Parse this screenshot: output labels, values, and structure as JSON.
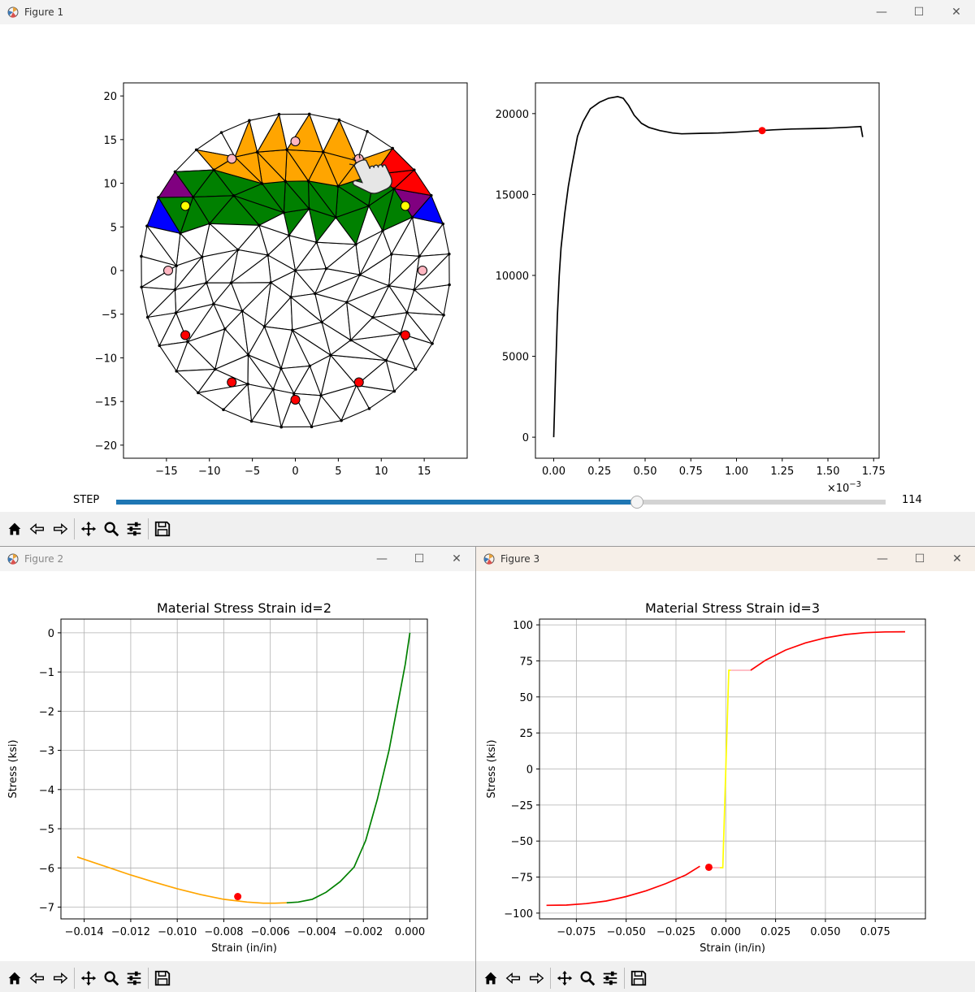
{
  "figure1": {
    "title": "Figure 1",
    "mesh_plot": {
      "x_ticks": [
        "−15",
        "−10",
        "−5",
        "0",
        "5",
        "10",
        "15"
      ],
      "y_ticks": [
        "20",
        "15",
        "10",
        "5",
        "0",
        "−5",
        "−10",
        "−15",
        "−20"
      ],
      "xlim": [
        -20,
        20
      ],
      "ylim": [
        -21.5,
        21.5
      ]
    },
    "step_slider": {
      "label": "STEP",
      "value": "114",
      "fraction": 0.676
    },
    "chart_data": {
      "type": "line",
      "title": "",
      "x_ticks": [
        "0.00",
        "0.25",
        "0.50",
        "0.75",
        "1.00",
        "1.25",
        "1.50",
        "1.75"
      ],
      "y_ticks": [
        "20000",
        "15000",
        "10000",
        "5000",
        "0"
      ],
      "x_multiplier": "×10",
      "x_multiplier_exp": "−3",
      "xlim": [
        -0.0001,
        0.00178
      ],
      "ylim": [
        -1300,
        21900
      ],
      "series": [
        {
          "color": "#000000",
          "x": [
            0.0,
            1e-05,
            2e-05,
            3e-05,
            4e-05,
            6e-05,
            8e-05,
            0.0001,
            0.00013,
            0.00016,
            0.0002,
            0.00025,
            0.0003,
            0.00035,
            0.00038,
            0.00041,
            0.00044,
            0.00048,
            0.00052,
            0.00058,
            0.00065,
            0.0007,
            0.0008,
            0.0009,
            0.001,
            0.00114,
            0.0012,
            0.0013,
            0.0014,
            0.0015,
            0.0016,
            0.00168,
            0.00169
          ],
          "y": [
            0,
            4000,
            7500,
            10000,
            11700,
            13800,
            15500,
            16800,
            18600,
            19500,
            20300,
            20700,
            20950,
            21050,
            20950,
            20500,
            19900,
            19400,
            19150,
            18950,
            18800,
            18750,
            18780,
            18800,
            18850,
            18950,
            19000,
            19050,
            19070,
            19100,
            19150,
            19200,
            18550
          ]
        }
      ],
      "marker": {
        "x": 0.00114,
        "y": 18950,
        "color": "#ff0000"
      }
    },
    "toolbar": [
      "home-icon",
      "back-icon",
      "forward-icon",
      "pan-icon",
      "zoom-icon",
      "configure-icon",
      "save-icon"
    ]
  },
  "figure2": {
    "title": "Figure 2",
    "chart_data": {
      "type": "line",
      "title": "Material Stress Strain id=2",
      "xlabel": "Strain (in/in)",
      "ylabel": "Stress (ksi)",
      "x_ticks": [
        "−0.014",
        "−0.012",
        "−0.010",
        "−0.008",
        "−0.006",
        "−0.004",
        "−0.002",
        "0.000"
      ],
      "x_tick_values": [
        -0.014,
        -0.012,
        -0.01,
        -0.008,
        -0.006,
        -0.004,
        -0.002,
        0.0
      ],
      "y_ticks": [
        "0",
        "−1",
        "−2",
        "−3",
        "−4",
        "−5",
        "−6",
        "−7"
      ],
      "y_tick_values": [
        0,
        -1,
        -2,
        -3,
        -4,
        -5,
        -6,
        -7
      ],
      "xlim": [
        -0.015,
        0.00075
      ],
      "ylim": [
        -7.3,
        0.35
      ],
      "grid": true,
      "series": [
        {
          "color": "#ffa500",
          "x": [
            -0.0143,
            -0.013,
            -0.012,
            -0.011,
            -0.01,
            -0.009,
            -0.008,
            -0.007,
            -0.0063,
            -0.0058,
            -0.0053
          ],
          "y": [
            -5.72,
            -5.98,
            -6.18,
            -6.36,
            -6.53,
            -6.68,
            -6.8,
            -6.87,
            -6.9,
            -6.9,
            -6.89
          ]
        },
        {
          "color": "#008000",
          "x": [
            -0.0053,
            -0.0048,
            -0.0042,
            -0.0036,
            -0.003,
            -0.0024,
            -0.0019,
            -0.0014,
            -0.0009,
            -0.0005,
            -0.0002,
            0.0
          ],
          "y": [
            -6.89,
            -6.87,
            -6.8,
            -6.62,
            -6.35,
            -5.98,
            -5.3,
            -4.25,
            -3.0,
            -1.75,
            -0.8,
            0.0
          ]
        }
      ],
      "marker": {
        "x": -0.0074,
        "y": -6.73,
        "color": "#ff0000"
      }
    },
    "toolbar": [
      "home-icon",
      "back-icon",
      "forward-icon",
      "pan-icon",
      "zoom-icon",
      "configure-icon",
      "save-icon"
    ]
  },
  "figure3": {
    "title": "Figure 3",
    "chart_data": {
      "type": "line",
      "title": "Material Stress Strain id=3",
      "xlabel": "Strain (in/in)",
      "ylabel": "Stress (ksi)",
      "x_ticks": [
        "−0.075",
        "−0.050",
        "−0.025",
        "0.000",
        "0.025",
        "0.050",
        "0.075"
      ],
      "x_tick_values": [
        -0.075,
        -0.05,
        -0.025,
        0.0,
        0.025,
        0.05,
        0.075
      ],
      "y_ticks": [
        "100",
        "75",
        "50",
        "25",
        "0",
        "−25",
        "−50",
        "−75",
        "−100"
      ],
      "y_tick_values": [
        100,
        75,
        50,
        25,
        0,
        -25,
        -50,
        -75,
        -100
      ],
      "xlim": [
        -0.0935,
        0.1002
      ],
      "ylim": [
        -104,
        104
      ],
      "grid": true,
      "series": [
        {
          "color": "#ff0000",
          "x": [
            -0.09,
            -0.08,
            -0.07,
            -0.06,
            -0.05,
            -0.04,
            -0.03,
            -0.02,
            -0.013
          ],
          "y": [
            -94.6,
            -94.4,
            -93.4,
            -91.6,
            -88.5,
            -84.5,
            -79.5,
            -73.5,
            -67.5
          ]
        },
        {
          "color": "#ffff00",
          "x": [
            -0.003,
            -0.0015,
            0.0015,
            0.0025
          ],
          "y": [
            -68.5,
            -68.5,
            68.5,
            68.5
          ]
        },
        {
          "color": "#ffb6c1",
          "x": [
            -0.0075,
            -0.003
          ],
          "y": [
            -68.5,
            -68.5
          ]
        },
        {
          "color": "#ffb6c1",
          "x": [
            0.0025,
            0.0125
          ],
          "y": [
            68.5,
            68.5
          ]
        },
        {
          "color": "#ff0000",
          "x": [
            0.0125,
            0.02,
            0.03,
            0.04,
            0.05,
            0.06,
            0.07,
            0.08,
            0.09
          ],
          "y": [
            68.5,
            75.5,
            82.5,
            87.5,
            91.0,
            93.3,
            94.6,
            95.1,
            95.2
          ]
        }
      ],
      "marker": {
        "x": -0.0085,
        "y": -68.2,
        "color": "#ff0000"
      }
    },
    "toolbar": [
      "home-icon",
      "back-icon",
      "forward-icon",
      "pan-icon",
      "zoom-icon",
      "configure-icon",
      "save-icon"
    ]
  }
}
